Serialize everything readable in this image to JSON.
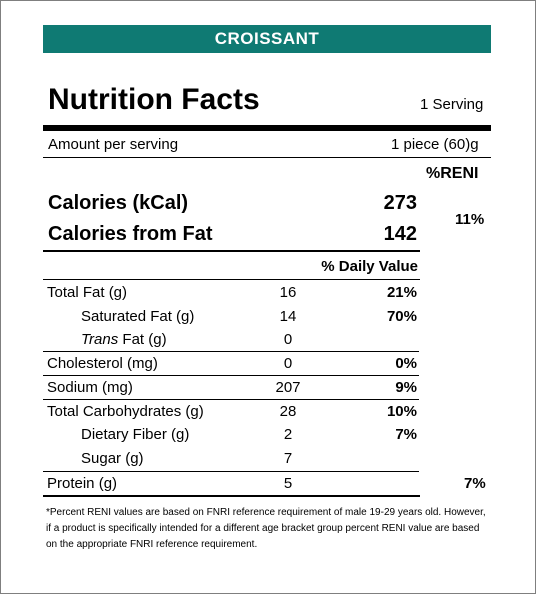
{
  "product_name": "CROISSANT",
  "heading": "Nutrition Facts",
  "serving_count": "1 Serving",
  "amount_per_serving_label": "Amount per serving",
  "amount_per_serving_value": "1 piece (60)g",
  "reni_header": "%RENI",
  "calories": {
    "label": "Calories (kCal)",
    "value": "273",
    "reni": "11%"
  },
  "calories_from_fat": {
    "label": "Calories from Fat",
    "value": "142"
  },
  "daily_value_header": "% Daily Value",
  "nutrients": [
    {
      "label": "Total Fat (g)",
      "amount": "16",
      "dv": "21%"
    },
    {
      "label": "Saturated Fat (g)",
      "amount": "14",
      "dv": "70%"
    },
    {
      "label_italic": "Trans",
      "label_rest": " Fat (g)",
      "amount": "0",
      "dv": ""
    },
    {
      "label": "Cholesterol (mg)",
      "amount": "0",
      "dv": "0%"
    },
    {
      "label": "Sodium (mg)",
      "amount": "207",
      "dv": "9%"
    },
    {
      "label": "Total Carbohydrates (g)",
      "amount": "28",
      "dv": "10%"
    },
    {
      "label": "Dietary Fiber (g)",
      "amount": "2",
      "dv": "7%"
    },
    {
      "label": "Sugar (g)",
      "amount": "7",
      "dv": ""
    },
    {
      "label": "Protein (g)",
      "amount": "5",
      "dv": "",
      "reni": "7%"
    }
  ],
  "footnote": "*Percent RENI values are based on FNRI reference requirement of male 19-29 years old. However, if a product is specifically intended for a different age bracket group percent RENI value are based on the appropriate FNRI reference requirement."
}
